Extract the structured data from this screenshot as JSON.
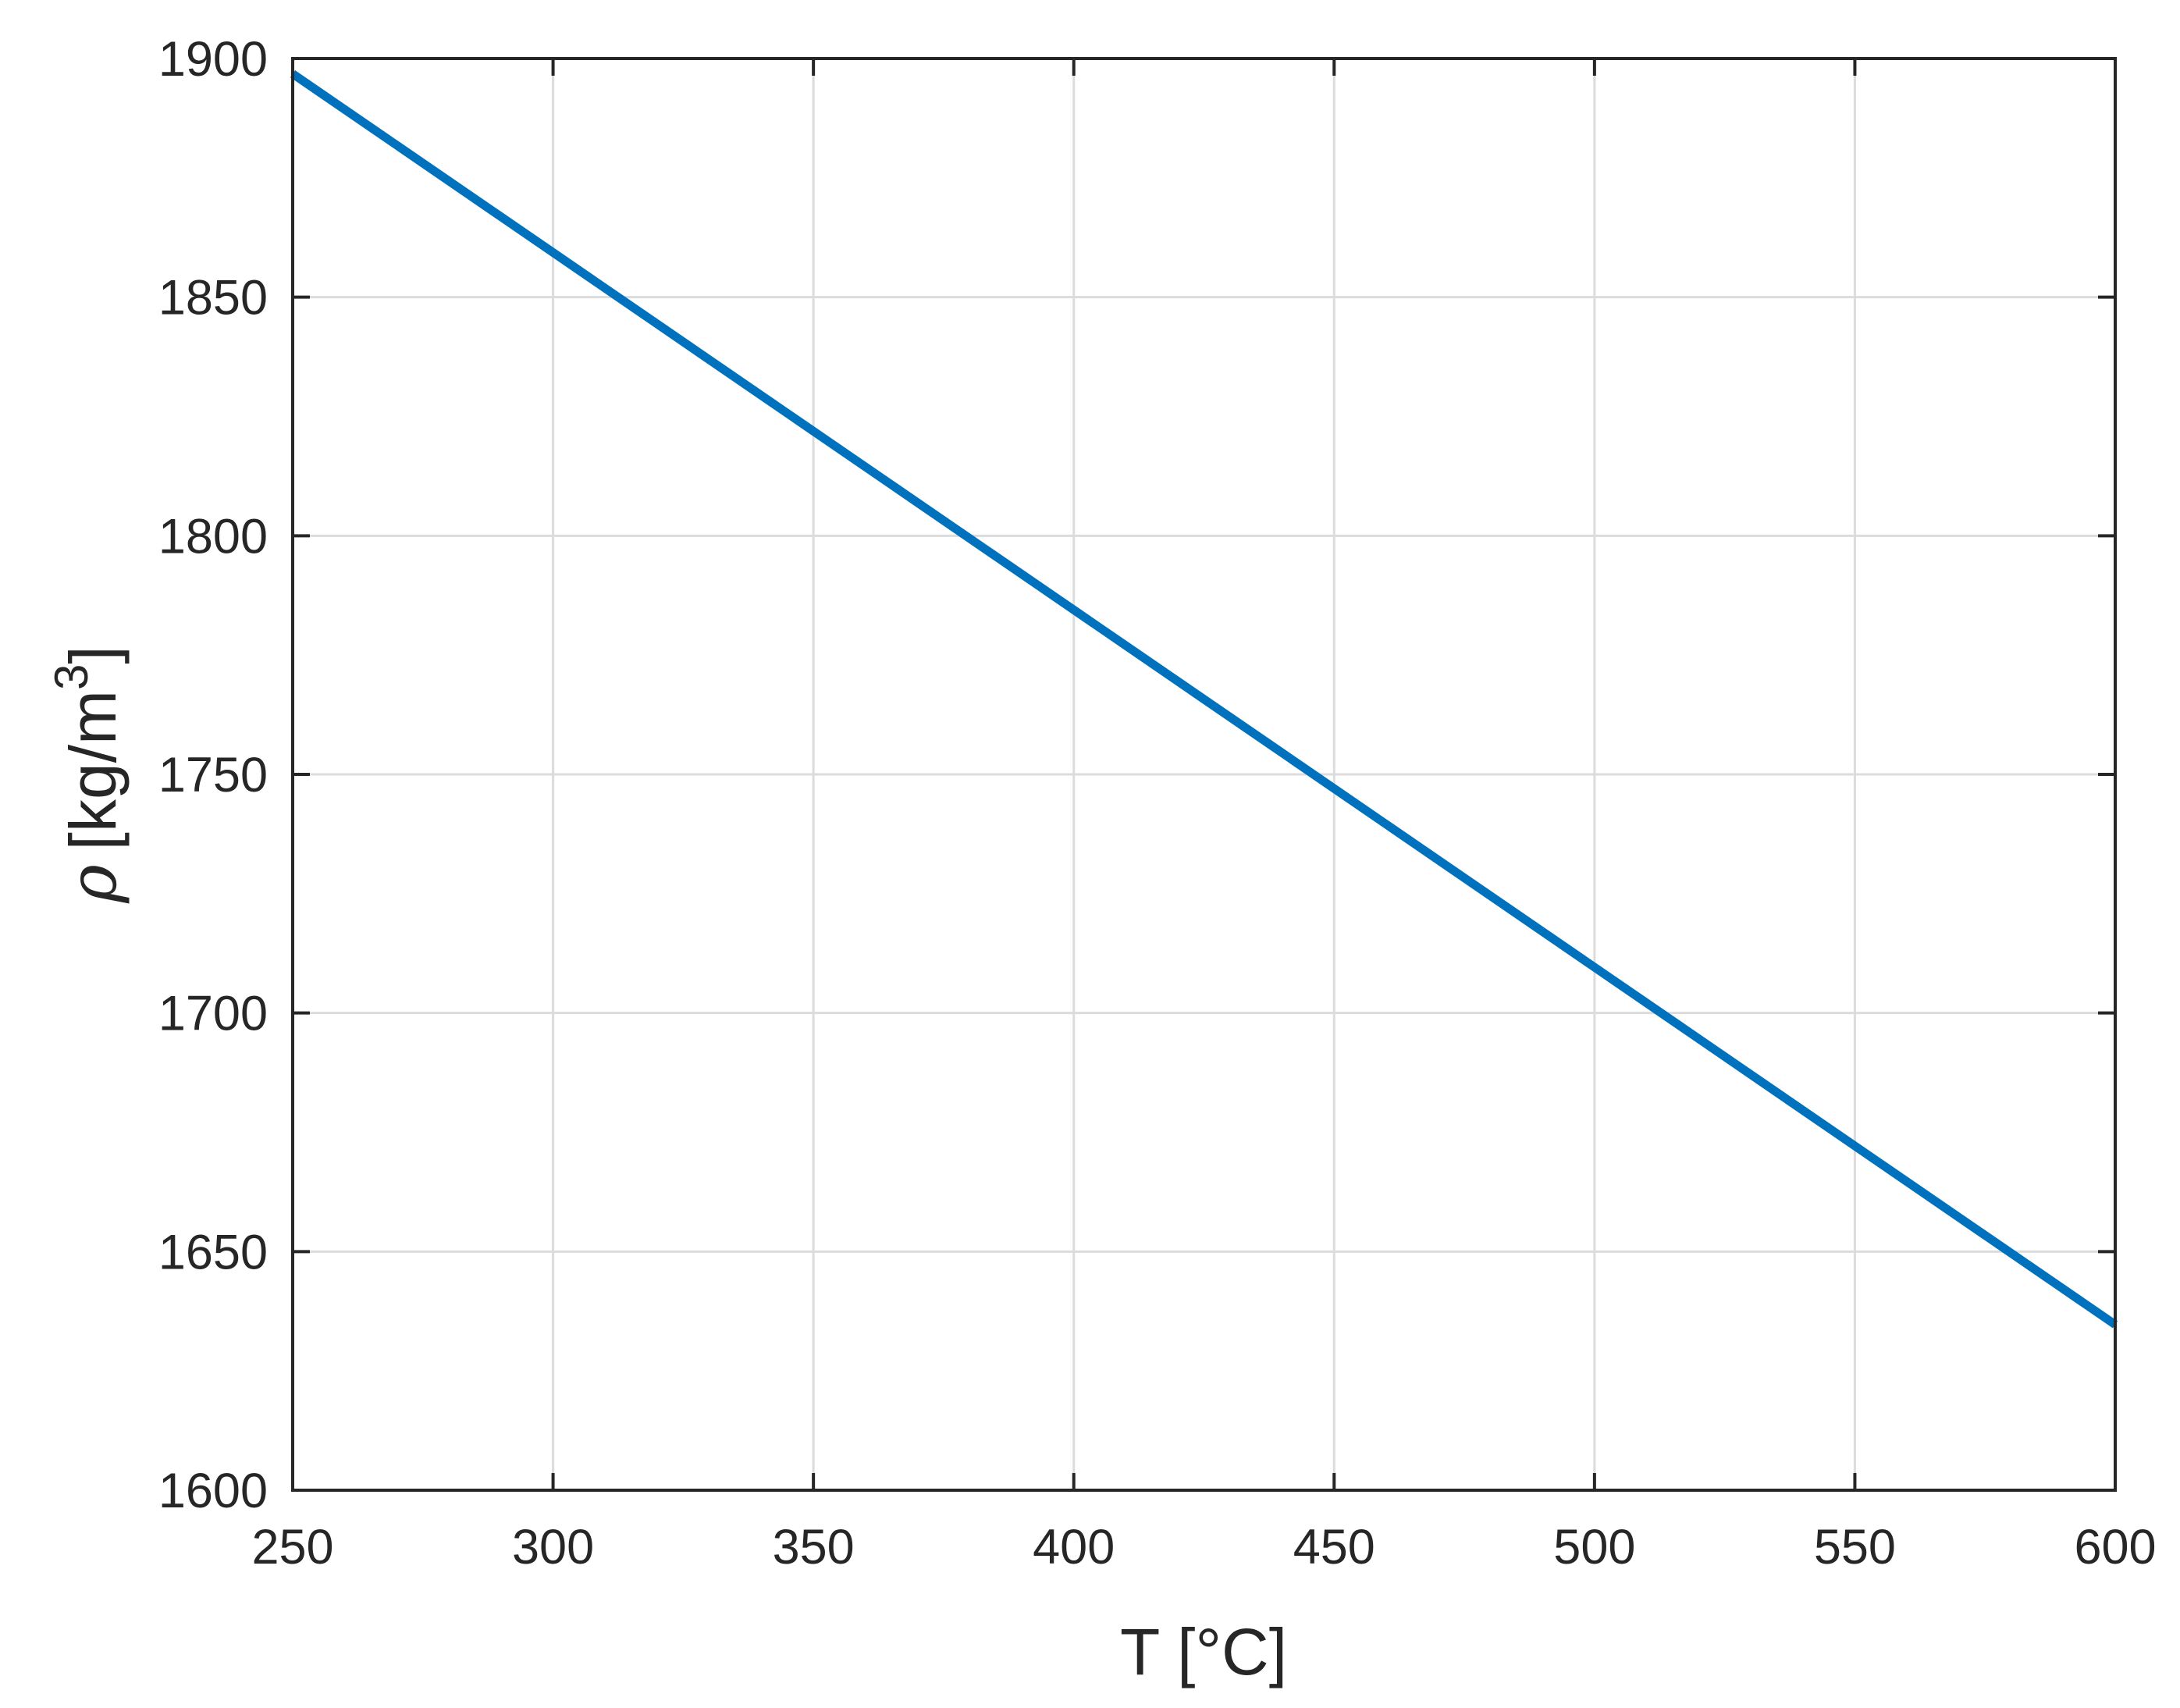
{
  "chart_data": {
    "type": "line",
    "title": "",
    "xlabel": "T [°C]",
    "ylabel": {
      "symbol": "ρ",
      "unit_prefix": "[kg/m",
      "unit_exponent": "3",
      "unit_suffix": "]"
    },
    "xlim": [
      250,
      600
    ],
    "ylim": [
      1600,
      1900
    ],
    "xticks": [
      250,
      300,
      350,
      400,
      450,
      500,
      550,
      600
    ],
    "yticks": [
      1600,
      1650,
      1700,
      1750,
      1800,
      1850,
      1900
    ],
    "grid": true,
    "legend": "none",
    "series": [
      {
        "color": "#0072BD",
        "x": [
          250,
          600
        ],
        "y": [
          1896.8,
          1634.7
        ]
      }
    ]
  },
  "colors": {
    "axis": "#262626",
    "grid": "#dcdcdc",
    "line": "#0072BD",
    "background": "#ffffff"
  }
}
